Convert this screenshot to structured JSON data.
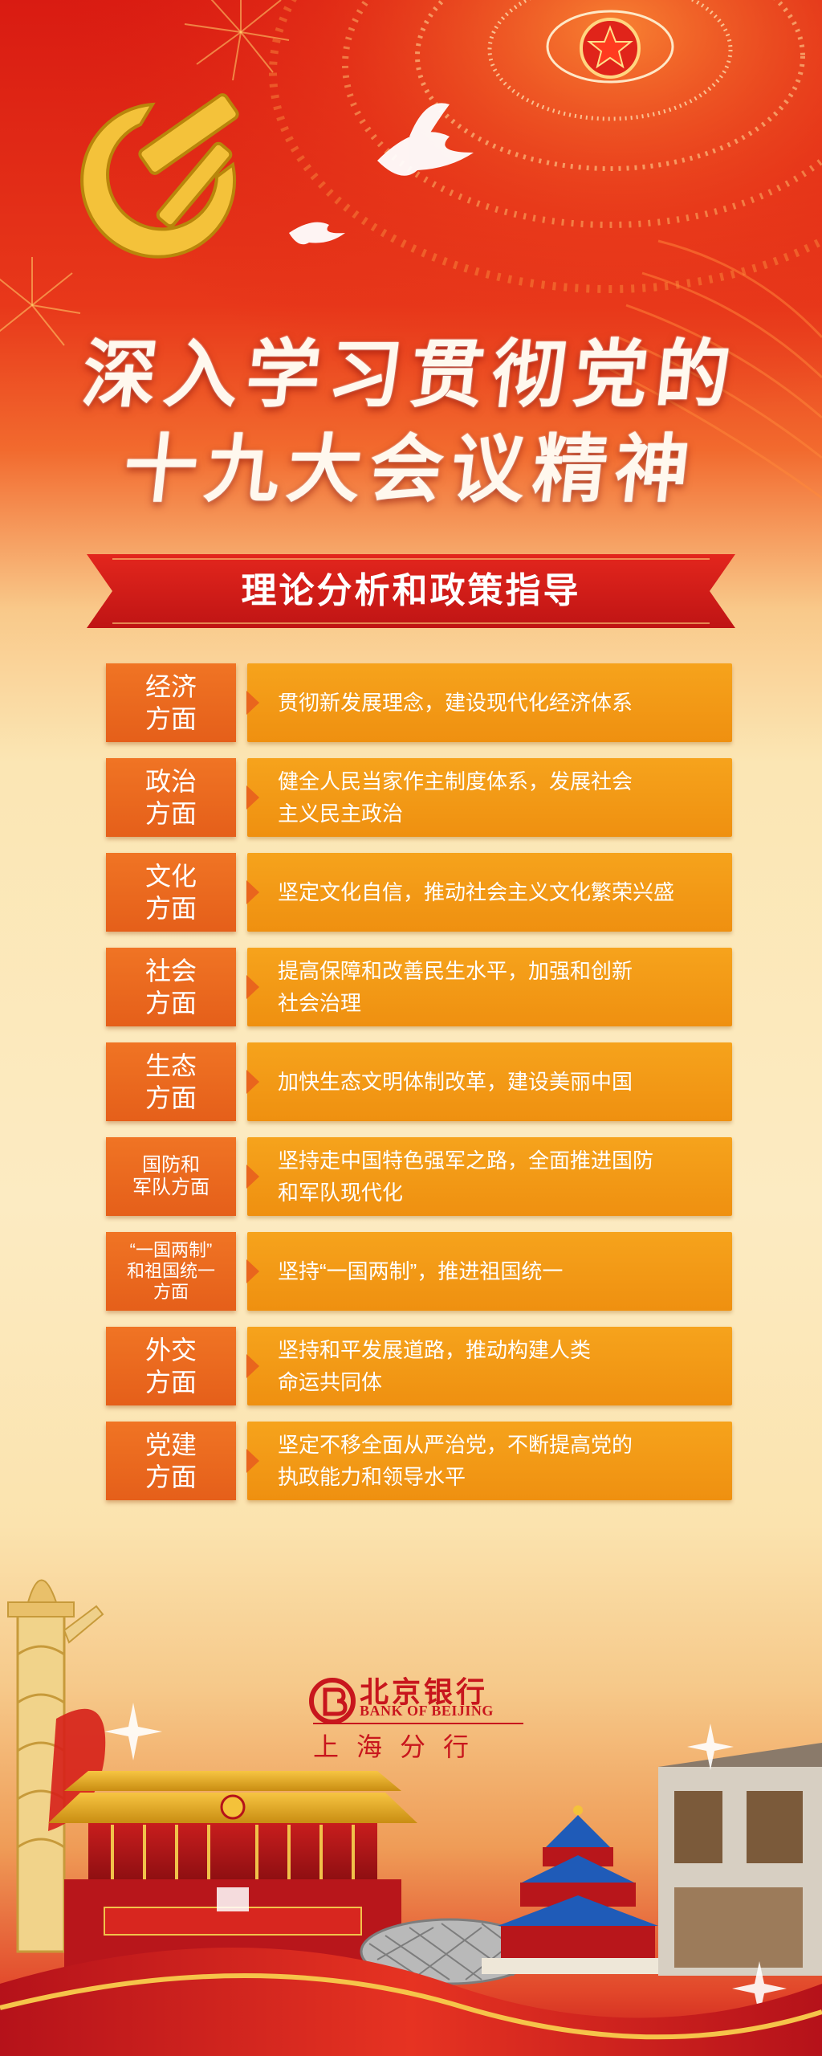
{
  "headline": {
    "line1": "深入学习贯彻党的",
    "line2": "十九大会议精神"
  },
  "banner": {
    "title": "理论分析和政策指导"
  },
  "rows": [
    {
      "category": "经济\n方面",
      "content": "贯彻新发展理念，建设现代化经济体系"
    },
    {
      "category": "政治\n方面",
      "content": "健全人民当家作主制度体系，发展社会\n主义民主政治"
    },
    {
      "category": "文化\n方面",
      "content": "坚定文化自信，推动社会主义文化繁荣兴盛"
    },
    {
      "category": "社会\n方面",
      "content": "提高保障和改善民生水平，加强和创新\n社会治理"
    },
    {
      "category": "生态\n方面",
      "content": "加快生态文明体制改革，建设美丽中国"
    },
    {
      "category": "国防和\n军队方面",
      "content": "坚持走中国特色强军之路，全面推进国防\n和军队现代化"
    },
    {
      "category": "“一国两制”\n和祖国统一\n方面",
      "content": "坚持“一国两制”，推进祖国统一"
    },
    {
      "category": "外交\n方面",
      "content": "坚持和平发展道路，推动构建人类\n命运共同体"
    },
    {
      "category": "党建\n方面",
      "content": "坚定不移全面从严治党，不断提高党的\n执政能力和领导水平"
    }
  ],
  "logo": {
    "name_cn": "北京银行",
    "name_en": "BANK OF BEIJING",
    "branch": "上海分行"
  },
  "colors": {
    "red": "#d91b12",
    "category_orange": "#e9651d",
    "content_orange": "#f39c14",
    "logo_red": "#c8161d"
  },
  "icons": [
    "party-emblem-icon",
    "national-emblem-icon",
    "dove-icon",
    "bank-logo-icon"
  ]
}
